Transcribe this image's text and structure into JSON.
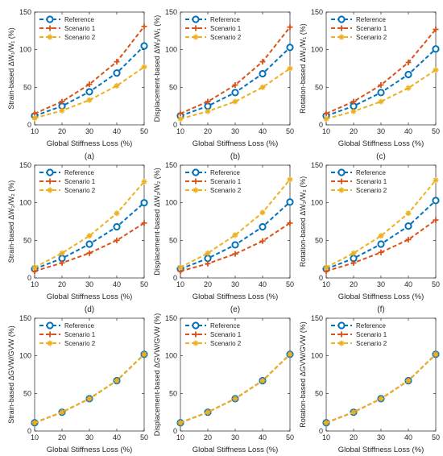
{
  "figure": {
    "series_names": [
      "Reference",
      "Scenario 1",
      "Scenario 2"
    ],
    "colors": {
      "Reference": "#0072BD",
      "Scenario 1": "#D95319",
      "Scenario 2": "#EDB120"
    },
    "markers": {
      "Reference": "circle",
      "Scenario 1": "plus",
      "Scenario 2": "star"
    },
    "line_style": "dashed",
    "legend_position": "top-left",
    "grid": false
  },
  "chart_data": [
    {
      "type": "line",
      "caption": "(a)",
      "xlabel": "Global Stiffness Loss (%)",
      "ylabel": "Strain-based ΔW₁/W₁ (%)",
      "x": [
        10,
        20,
        30,
        40,
        50
      ],
      "xlim": [
        10,
        50
      ],
      "xticks": [
        10,
        20,
        30,
        40,
        50
      ],
      "ylim": [
        0,
        150
      ],
      "yticks": [
        0,
        50,
        100,
        150
      ],
      "series": [
        {
          "name": "Reference",
          "values": [
            12,
            25,
            44,
            69,
            105
          ]
        },
        {
          "name": "Scenario 1",
          "values": [
            15,
            31,
            54,
            84,
            131
          ]
        },
        {
          "name": "Scenario 2",
          "values": [
            9,
            19,
            33,
            52,
            77
          ]
        }
      ]
    },
    {
      "type": "line",
      "caption": "(b)",
      "xlabel": "Global Stiffness Loss (%)",
      "ylabel": "Displacement-based ΔW₁/W₁ (%)",
      "x": [
        10,
        20,
        30,
        40,
        50
      ],
      "xlim": [
        10,
        50
      ],
      "xticks": [
        10,
        20,
        30,
        40,
        50
      ],
      "ylim": [
        0,
        150
      ],
      "yticks": [
        0,
        50,
        100,
        150
      ],
      "series": [
        {
          "name": "Reference",
          "values": [
            12,
            25,
            43,
            68,
            103
          ]
        },
        {
          "name": "Scenario 1",
          "values": [
            15,
            31,
            53,
            84,
            130
          ]
        },
        {
          "name": "Scenario 2",
          "values": [
            8,
            18,
            31,
            50,
            75
          ]
        }
      ]
    },
    {
      "type": "line",
      "caption": "(c)",
      "xlabel": "Global Stiffness Loss (%)",
      "ylabel": "Rotation-based ΔW₁/W₁ (%)",
      "x": [
        10,
        20,
        30,
        40,
        50
      ],
      "xlim": [
        10,
        50
      ],
      "xticks": [
        10,
        20,
        30,
        40,
        50
      ],
      "ylim": [
        0,
        150
      ],
      "yticks": [
        0,
        50,
        100,
        150
      ],
      "series": [
        {
          "name": "Reference",
          "values": [
            12,
            25,
            43,
            67,
            101
          ]
        },
        {
          "name": "Scenario 1",
          "values": [
            15,
            31,
            53,
            83,
            127
          ]
        },
        {
          "name": "Scenario 2",
          "values": [
            8,
            18,
            31,
            49,
            73
          ]
        }
      ]
    },
    {
      "type": "line",
      "caption": "(d)",
      "xlabel": "Global Stiffness Loss (%)",
      "ylabel": "Strain-based ΔW₂/W₂ (%)",
      "x": [
        10,
        20,
        30,
        40,
        50
      ],
      "xlim": [
        10,
        50
      ],
      "xticks": [
        10,
        20,
        30,
        40,
        50
      ],
      "ylim": [
        0,
        150
      ],
      "yticks": [
        0,
        50,
        100,
        150
      ],
      "series": [
        {
          "name": "Reference",
          "values": [
            12,
            26,
            45,
            68,
            100
          ]
        },
        {
          "name": "Scenario 1",
          "values": [
            9,
            20,
            33,
            50,
            73
          ]
        },
        {
          "name": "Scenario 2",
          "values": [
            14,
            33,
            56,
            86,
            128
          ]
        }
      ]
    },
    {
      "type": "line",
      "caption": "(e)",
      "xlabel": "Global Stiffness Loss (%)",
      "ylabel": "Displacement-based ΔW₂/W₂ (%)",
      "x": [
        10,
        20,
        30,
        40,
        50
      ],
      "xlim": [
        10,
        50
      ],
      "xticks": [
        10,
        20,
        30,
        40,
        50
      ],
      "ylim": [
        0,
        150
      ],
      "yticks": [
        0,
        50,
        100,
        150
      ],
      "series": [
        {
          "name": "Reference",
          "values": [
            12,
            26,
            44,
            68,
            101
          ]
        },
        {
          "name": "Scenario 1",
          "values": [
            9,
            19,
            32,
            49,
            73
          ]
        },
        {
          "name": "Scenario 2",
          "values": [
            14,
            33,
            57,
            87,
            131
          ]
        }
      ]
    },
    {
      "type": "line",
      "caption": "(f)",
      "xlabel": "Global Stiffness Loss (%)",
      "ylabel": "Rotation-based ΔW₂/W₂ (%)",
      "x": [
        10,
        20,
        30,
        40,
        50
      ],
      "xlim": [
        10,
        50
      ],
      "xticks": [
        10,
        20,
        30,
        40,
        50
      ],
      "ylim": [
        0,
        150
      ],
      "yticks": [
        0,
        50,
        100,
        150
      ],
      "series": [
        {
          "name": "Reference",
          "values": [
            12,
            26,
            45,
            69,
            103
          ]
        },
        {
          "name": "Scenario 1",
          "values": [
            9,
            20,
            34,
            51,
            77
          ]
        },
        {
          "name": "Scenario 2",
          "values": [
            14,
            33,
            56,
            86,
            130
          ]
        }
      ]
    },
    {
      "type": "line",
      "caption": "(g)",
      "xlabel": "Global Stiffness Loss (%)",
      "ylabel": "Strain-based ΔGVW/GVW (%)",
      "x": [
        10,
        20,
        30,
        40,
        50
      ],
      "xlim": [
        10,
        50
      ],
      "xticks": [
        10,
        20,
        30,
        40,
        50
      ],
      "ylim": [
        0,
        150
      ],
      "yticks": [
        0,
        50,
        100,
        150
      ],
      "series": [
        {
          "name": "Reference",
          "values": [
            11,
            25,
            43,
            67,
            102
          ]
        },
        {
          "name": "Scenario 1",
          "values": [
            11,
            25,
            43,
            67,
            102
          ]
        },
        {
          "name": "Scenario 2",
          "values": [
            11,
            25,
            43,
            67,
            102
          ]
        }
      ]
    },
    {
      "type": "line",
      "caption": "(h)",
      "xlabel": "Global Stiffness Loss (%)",
      "ylabel": "Displacement-based ΔGVW/GVW (%)",
      "x": [
        10,
        20,
        30,
        40,
        50
      ],
      "xlim": [
        10,
        50
      ],
      "xticks": [
        10,
        20,
        30,
        40,
        50
      ],
      "ylim": [
        0,
        150
      ],
      "yticks": [
        0,
        50,
        100,
        150
      ],
      "series": [
        {
          "name": "Reference",
          "values": [
            11,
            25,
            43,
            67,
            102
          ]
        },
        {
          "name": "Scenario 1",
          "values": [
            11,
            25,
            43,
            67,
            102
          ]
        },
        {
          "name": "Scenario 2",
          "values": [
            11,
            25,
            43,
            67,
            102
          ]
        }
      ]
    },
    {
      "type": "line",
      "caption": "(i)",
      "xlabel": "Global Stiffness Loss (%)",
      "ylabel": "Rotation-based ΔGVW/GVW (%)",
      "x": [
        10,
        20,
        30,
        40,
        50
      ],
      "xlim": [
        10,
        50
      ],
      "xticks": [
        10,
        20,
        30,
        40,
        50
      ],
      "ylim": [
        0,
        150
      ],
      "yticks": [
        0,
        50,
        100,
        150
      ],
      "series": [
        {
          "name": "Reference",
          "values": [
            11,
            25,
            43,
            67,
            102
          ]
        },
        {
          "name": "Scenario 1",
          "values": [
            11,
            25,
            43,
            67,
            102
          ]
        },
        {
          "name": "Scenario 2",
          "values": [
            11,
            25,
            43,
            67,
            102
          ]
        }
      ]
    }
  ]
}
